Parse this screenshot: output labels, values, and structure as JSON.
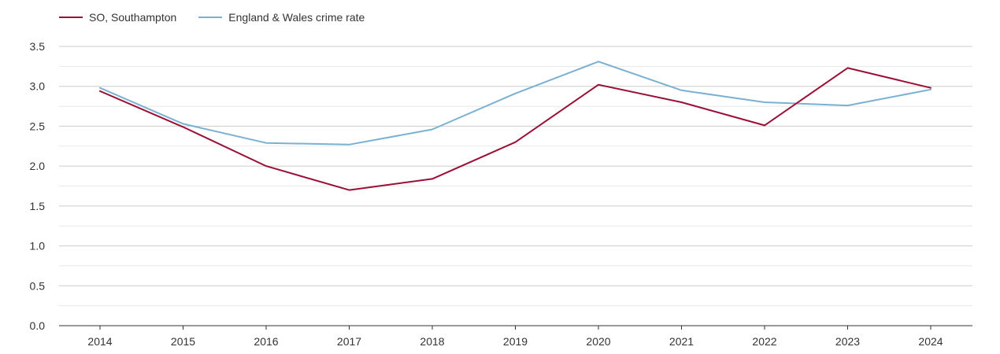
{
  "legend": {
    "series_0_label": "SO, Southampton",
    "series_1_label": "England & Wales crime rate"
  },
  "chart_data": {
    "type": "line",
    "x": [
      "2014",
      "2015",
      "2016",
      "2017",
      "2018",
      "2019",
      "2020",
      "2021",
      "2022",
      "2023",
      "2024"
    ],
    "series": [
      {
        "name": "SO, Southampton",
        "color": "#9b0f35",
        "values": [
          2.94,
          2.49,
          2.0,
          1.7,
          1.84,
          2.3,
          3.02,
          2.8,
          2.51,
          3.23,
          2.98
        ]
      },
      {
        "name": "England & Wales crime rate",
        "color": "#7ab0d1",
        "values": [
          2.98,
          2.53,
          2.29,
          2.27,
          2.46,
          2.91,
          3.31,
          2.95,
          2.8,
          2.76,
          2.96
        ]
      }
    ],
    "ylim": [
      0,
      3.5
    ],
    "yticks": [
      "0.0",
      "0.5",
      "1.0",
      "1.5",
      "2.0",
      "2.5",
      "3.0",
      "3.5"
    ],
    "grid": true,
    "legend_position": "top-left",
    "title": "",
    "xlabel": "",
    "ylabel": ""
  }
}
